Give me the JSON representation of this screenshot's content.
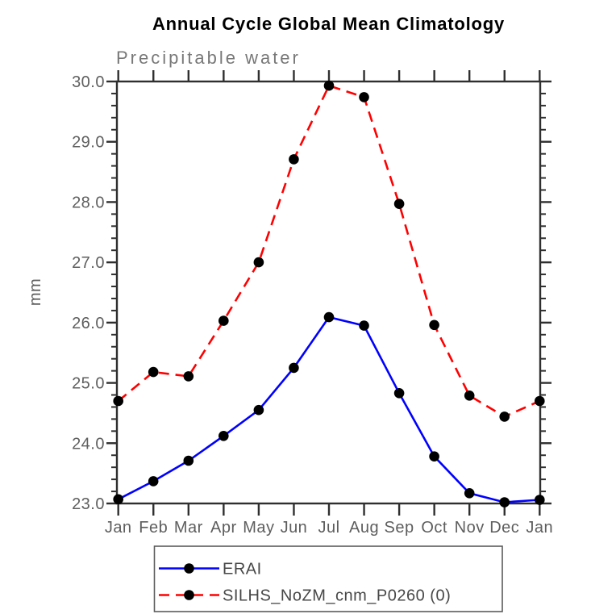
{
  "chart_data": {
    "type": "line",
    "title": "Annual Cycle Global Mean Climatology",
    "subtitle": "Precipitable water",
    "ylabel": "mm",
    "xlabel": "",
    "categories": [
      "Jan",
      "Feb",
      "Mar",
      "Apr",
      "May",
      "Jun",
      "Jul",
      "Aug",
      "Sep",
      "Oct",
      "Nov",
      "Dec",
      "Jan"
    ],
    "ylim": [
      23.0,
      30.0
    ],
    "ytick_major_interval": 1.0,
    "ytick_minor_interval": 0.2,
    "ytick_labels": [
      "23.0",
      "24.0",
      "25.0",
      "26.0",
      "27.0",
      "28.0",
      "29.0",
      "30.0"
    ],
    "grid": false,
    "legend_position": "bottom",
    "series": [
      {
        "name": "ERAI",
        "color": "#0000ff",
        "line_style": "solid",
        "marker": "filled-circle",
        "marker_color": "#000000",
        "values": [
          23.07,
          23.37,
          23.71,
          24.12,
          24.55,
          25.25,
          26.09,
          25.95,
          24.83,
          23.78,
          23.17,
          23.02,
          23.06
        ]
      },
      {
        "name": "SILHS_NoZM_cnm_P0260 (0)",
        "color": "#ff0000",
        "line_style": "dashed",
        "marker": "filled-circle",
        "marker_color": "#000000",
        "values": [
          24.7,
          25.18,
          25.11,
          26.03,
          27.0,
          28.71,
          29.93,
          29.74,
          27.97,
          25.96,
          24.79,
          24.44,
          24.7
        ]
      }
    ]
  },
  "colors": {
    "axis": "#2f2f2f",
    "tick_label": "#5e5e5e",
    "subtitle": "#787878",
    "title": "#000000",
    "legend_text": "#474747",
    "legend_border": "#5c5c5c",
    "background": "#ffffff"
  }
}
